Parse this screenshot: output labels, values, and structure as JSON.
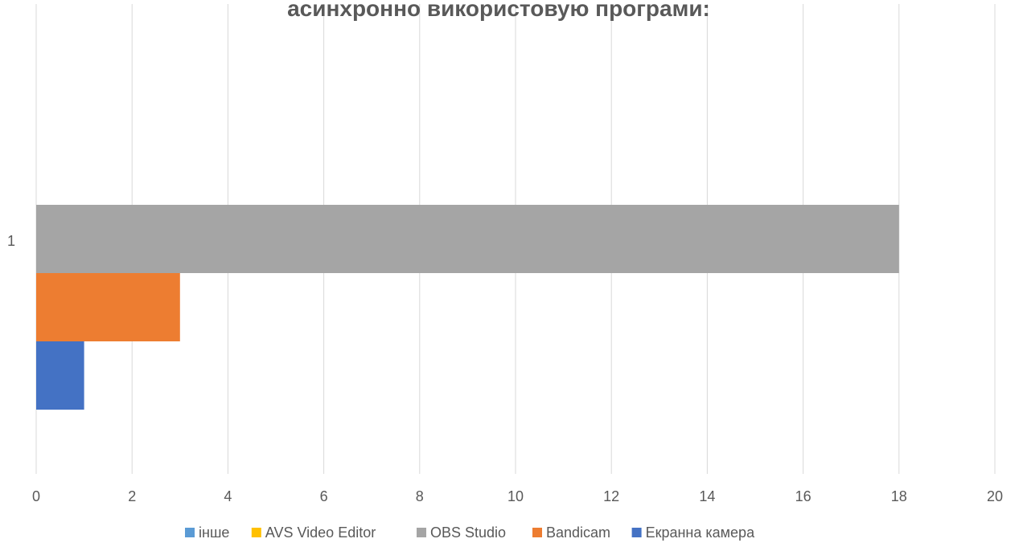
{
  "chart_data": {
    "type": "bar",
    "orientation": "horizontal",
    "title": "асинхронно використовую програми:",
    "categories": [
      "1"
    ],
    "series": [
      {
        "name": "Екранна камера",
        "values": [
          1
        ],
        "color": "#4472C4"
      },
      {
        "name": "Bandicam",
        "values": [
          3
        ],
        "color": "#ED7D31"
      },
      {
        "name": "OBS Studio",
        "values": [
          18
        ],
        "color": "#A5A5A5"
      },
      {
        "name": "AVS Video Editor",
        "values": [
          0
        ],
        "color": "#FFC000"
      },
      {
        "name": "інше",
        "values": [
          0
        ],
        "color": "#5B9BD5"
      }
    ],
    "legend_order": [
      "інше",
      "AVS Video Editor",
      "OBS Studio",
      "Bandicam",
      "Екранна камера"
    ],
    "xlim": [
      0,
      20
    ],
    "x_ticks": [
      "0",
      "2",
      "4",
      "6",
      "8",
      "10",
      "12",
      "14",
      "16",
      "18",
      "20"
    ],
    "grid": true,
    "legend_position": "bottom"
  }
}
